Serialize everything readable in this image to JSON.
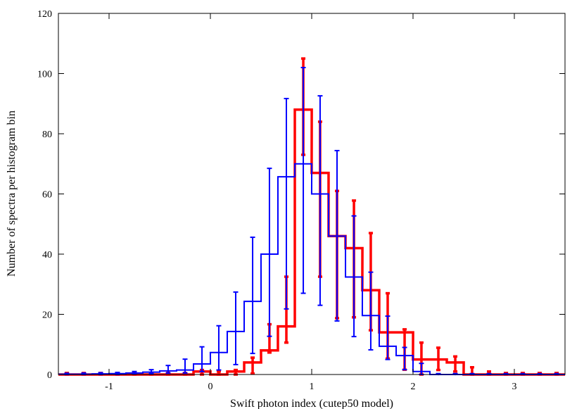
{
  "chart_data": {
    "type": "line",
    "style": "step-histogram-with-error-bars",
    "title": "",
    "xlabel": "Swift photon index (cutep50 model)",
    "ylabel": "Number of spectra per histogram bin",
    "xlim": [
      -1.5,
      3.5
    ],
    "ylim": [
      0,
      120
    ],
    "xticks": [
      -1,
      0,
      1,
      2,
      3
    ],
    "xtick_labels": [
      "-1",
      "0",
      "1",
      "2",
      "3"
    ],
    "yticks": [
      0,
      20,
      40,
      60,
      80,
      100,
      120
    ],
    "ytick_labels": [
      "0",
      "20",
      "40",
      "60",
      "80",
      "100",
      "120"
    ],
    "grid": false,
    "legend": "none",
    "x": [
      -1.417,
      -1.25,
      -1.083,
      -0.917,
      -0.75,
      -0.583,
      -0.417,
      -0.25,
      -0.083,
      0.083,
      0.25,
      0.417,
      0.583,
      0.75,
      0.917,
      1.083,
      1.25,
      1.417,
      1.583,
      1.75,
      1.917,
      2.083,
      2.25,
      2.417,
      2.583,
      2.75,
      2.917,
      3.083,
      3.25,
      3.417
    ],
    "series": [
      {
        "color": "#ff0000",
        "values": [
          0,
          0,
          0,
          0,
          0,
          0,
          0,
          0,
          1,
          0,
          1,
          4,
          8,
          16,
          88,
          67,
          46,
          42,
          28,
          14,
          14,
          5,
          5,
          4,
          0,
          0,
          0,
          0,
          0,
          0
        ],
        "err_low": [
          0,
          0,
          0,
          0,
          0,
          0,
          0,
          0,
          0,
          0,
          0,
          0.3,
          7.3,
          10.6,
          73,
          32.5,
          18.7,
          19,
          14.7,
          5.3,
          1.6,
          0,
          1.5,
          1,
          0,
          0,
          0,
          0,
          0,
          0
        ],
        "err_high": [
          0.5,
          0.5,
          0.5,
          0.5,
          0.5,
          0.5,
          0.5,
          0.5,
          1.5,
          1,
          1.5,
          5.6,
          16.7,
          32.5,
          105,
          84,
          61,
          57.8,
          47,
          27,
          15,
          10.6,
          8.9,
          6,
          2.4,
          1,
          0.5,
          0.5,
          0.5,
          0.5
        ]
      },
      {
        "color": "#0000ff",
        "values": [
          0.1,
          0.1,
          0.2,
          0.3,
          0.5,
          0.8,
          1.2,
          1.5,
          3.5,
          7.3,
          14.3,
          24.3,
          40,
          65.7,
          70,
          60,
          46,
          32.4,
          19.6,
          9.4,
          6.3,
          1,
          0,
          0,
          0,
          0,
          0,
          0,
          0,
          0
        ],
        "err_low": [
          0,
          0,
          0,
          0,
          0.2,
          0.3,
          0.5,
          0.5,
          1,
          1.5,
          3.3,
          7,
          12.7,
          21.8,
          27,
          23,
          17.8,
          12.6,
          8.2,
          5,
          1.6,
          0,
          0,
          0,
          0,
          0,
          0,
          0,
          0,
          0
        ],
        "err_high": [
          0.4,
          0.5,
          0.6,
          0.7,
          1,
          1.6,
          3,
          5.1,
          9.2,
          16.2,
          27.4,
          45.6,
          68.5,
          91.7,
          102,
          92.6,
          74.4,
          52.7,
          34,
          19.4,
          9,
          3.7,
          0.3,
          0.3,
          0.3,
          0.3,
          0.3,
          0.3,
          0.3,
          0.3
        ]
      }
    ]
  }
}
